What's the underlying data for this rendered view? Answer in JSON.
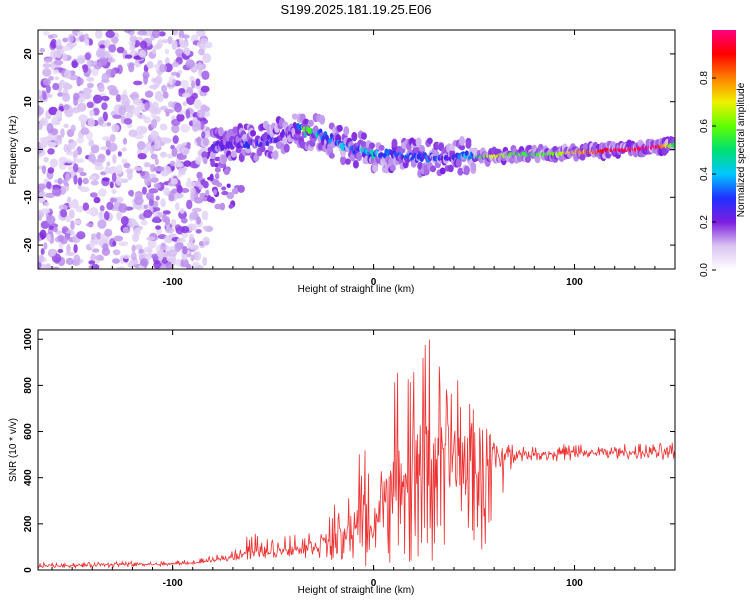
{
  "chart_data": [
    {
      "type": "heatmap",
      "title": "S199.2025.181.19.25.E06",
      "xlabel": "Height of straight line (km)",
      "ylabel": "Frequency (Hz)",
      "xlim": [
        -167,
        150
      ],
      "ylim": [
        -25,
        25
      ],
      "xticks": [
        -100,
        0,
        100
      ],
      "yticks": [
        -20,
        -10,
        0,
        10,
        20
      ],
      "colorbar": {
        "label": "Normalized spectral amplitude",
        "range": [
          0,
          1
        ],
        "ticks": [
          "0.0",
          "0.2",
          "0.4",
          "0.6",
          "0.8"
        ],
        "colors": [
          "#ffffff",
          "#d9c4f2",
          "#7b1fe0",
          "#2030ff",
          "#00c8ff",
          "#00e070",
          "#60ff00",
          "#f0f000",
          "#ff8000",
          "#ff0000",
          "#ff0080"
        ]
      },
      "ridge": {
        "name": "",
        "x": [
          -80,
          -70,
          -60,
          -50,
          -40,
          -35,
          -30,
          -25,
          -20,
          -15,
          -10,
          -5,
          0,
          10,
          20,
          30,
          40,
          50,
          60,
          70,
          80,
          90,
          100,
          110,
          120,
          130,
          140,
          150
        ],
        "frequency": [
          0.5,
          1,
          1.5,
          2,
          4.5,
          4,
          3.5,
          3,
          2,
          1,
          0,
          -0.5,
          -1,
          -1,
          -1.5,
          -1.5,
          -1.5,
          -1.5,
          -1.5,
          -1,
          -1,
          -1,
          -0.5,
          -0.5,
          0,
          0,
          0.5,
          1
        ],
        "amplitude": [
          0.3,
          0.25,
          0.3,
          0.25,
          0.2,
          0.55,
          0.6,
          0.4,
          0.35,
          0.4,
          0.45,
          0.4,
          0.45,
          0.35,
          0.3,
          0.35,
          0.3,
          0.45,
          0.7,
          0.55,
          0.55,
          0.6,
          0.75,
          0.85,
          0.95,
          0.95,
          1.0,
          0.5
        ]
      }
    },
    {
      "type": "line",
      "title": "",
      "xlabel": "Height of straight line (km)",
      "ylabel": "SNR (10 * v/v)",
      "xlim": [
        -167,
        150
      ],
      "ylim": [
        0,
        1040
      ],
      "xticks": [
        -100,
        0,
        100
      ],
      "yticks": [
        0,
        200,
        400,
        600,
        800,
        1000
      ],
      "color": "#ee3030",
      "series": [
        {
          "name": "",
          "x": [
            -167,
            -150,
            -130,
            -110,
            -90,
            -80,
            -70,
            -63,
            -55,
            -45,
            -35,
            -25,
            -20,
            -15,
            -10,
            -5,
            0,
            5,
            10,
            15,
            20,
            25,
            30,
            35,
            40,
            45,
            50,
            55,
            60,
            65,
            70,
            80,
            90,
            100,
            110,
            120,
            130,
            140,
            150
          ],
          "envelope_low": [
            10,
            10,
            10,
            15,
            25,
            35,
            40,
            45,
            50,
            55,
            50,
            50,
            40,
            30,
            20,
            15,
            10,
            10,
            10,
            20,
            30,
            20,
            20,
            30,
            40,
            40,
            50,
            80,
            200,
            300,
            470,
            470,
            470,
            470,
            480,
            480,
            480,
            480,
            470
          ],
          "envelope_high": [
            35,
            30,
            40,
            35,
            45,
            60,
            90,
            220,
            130,
            160,
            170,
            200,
            290,
            260,
            400,
            600,
            300,
            690,
            800,
            950,
            910,
            1030,
            1010,
            960,
            840,
            800,
            710,
            680,
            600,
            560,
            540,
            540,
            545,
            550,
            540,
            545,
            550,
            550,
            560
          ],
          "mean": [
            20,
            20,
            25,
            25,
            30,
            40,
            60,
            80,
            80,
            90,
            100,
            120,
            140,
            150,
            200,
            260,
            180,
            320,
            360,
            420,
            450,
            500,
            520,
            520,
            500,
            480,
            470,
            470,
            480,
            500,
            505,
            505,
            505,
            510,
            510,
            510,
            510,
            510,
            510
          ]
        }
      ]
    }
  ]
}
